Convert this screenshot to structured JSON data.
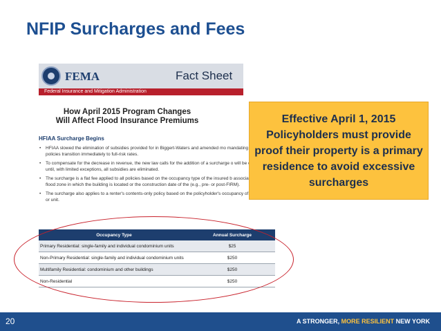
{
  "slide": {
    "title": "NFIP Surcharges and Fees",
    "page_number": "20"
  },
  "fact_sheet": {
    "logo_text": "FEMA",
    "header_label": "Fact Sheet",
    "agency_bar": "Federal Insurance and Mitigation Administration",
    "title_line1": "How April 2015 Program Changes",
    "title_line2": "Will Affect Flood Insurance Premiums",
    "section_heading": "HFIAA Surcharge Begins",
    "bullets": [
      "HFIAA slowed the elimination of subsidies provided for in Biggert-Waters and amended mo mandating that certain policies transition immediately to full-risk rates.",
      "To compensate for the decrease in revenue, the new law calls for the addition of a surcharge o will be collected until, with limited exceptions, all subsidies are eliminated.",
      "The surcharge is a flat fee applied to all policies based on the occupancy type of the insured b associated with the flood zone in which the building is located or the construction date of the (e.g., pre- or post-FIRM).",
      "The surcharge also applies to a renter's contents-only policy based on the policyholder's occupancy of the building or unit."
    ],
    "table": {
      "headers": [
        "Occupancy Type",
        "Annual Surcharge"
      ],
      "rows": [
        [
          "Primary Residential: single-family and individual condominium units",
          "$25"
        ],
        [
          "Non-Primary Residential: single-family and individual condominium units",
          "$250"
        ],
        [
          "Multifamily Residential: condominium and other buildings",
          "$250"
        ],
        [
          "Non-Residential",
          "$250"
        ]
      ]
    }
  },
  "callout": {
    "text": "Effective April 1, 2015 Policyholders must provide proof their property is a primary residence to avoid excessive surcharges"
  },
  "footer": {
    "tagline_part1": "A STRONGER, ",
    "tagline_highlight": "MORE RESILIENT",
    "tagline_part2": " NEW YORK"
  },
  "colors": {
    "title_blue": "#1d4f91",
    "footer_blue": "#1f4f8d",
    "callout_yellow": "#fdc23e",
    "fema_red": "#b8202c",
    "ellipse_red": "#c8202a"
  }
}
